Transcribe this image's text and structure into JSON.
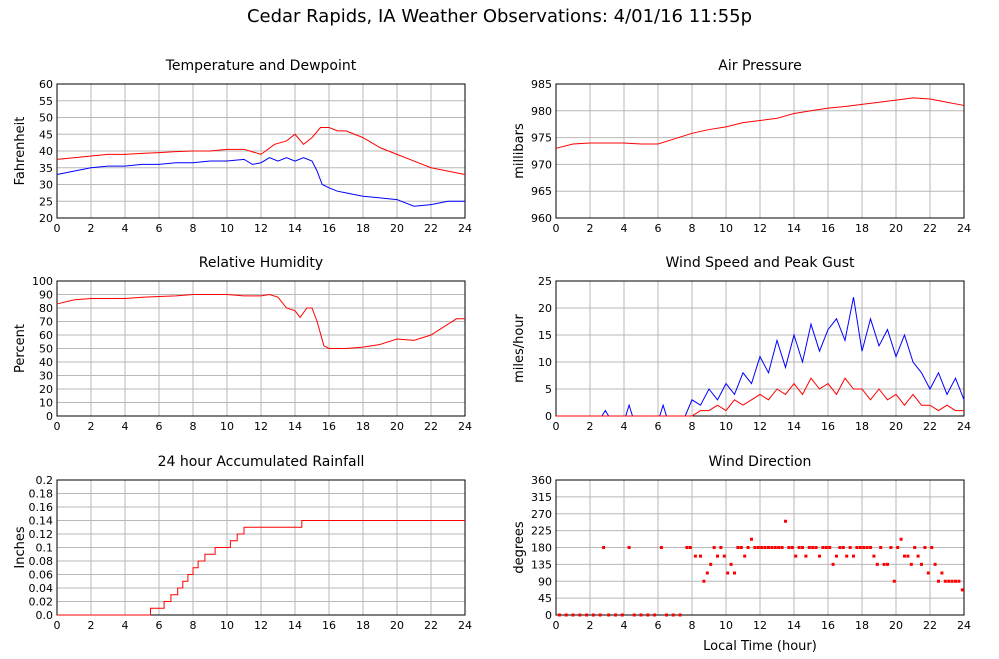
{
  "title": "Cedar Rapids, IA Weather Observations: 4/01/16 11:55p",
  "xlabel_shared": "Local Time (hour)",
  "colors": {
    "red": "#ff0000",
    "blue": "#0000ff"
  },
  "chart_data": [
    {
      "id": "temp",
      "type": "line",
      "title": "Temperature and Dewpoint",
      "ylabel": "Fahrenheit",
      "xlim": [
        0,
        24
      ],
      "ylim": [
        20,
        60
      ],
      "xticks": [
        0,
        2,
        4,
        6,
        8,
        10,
        12,
        14,
        16,
        18,
        20,
        22,
        24
      ],
      "yticks": [
        20,
        25,
        30,
        35,
        40,
        45,
        50,
        55,
        60
      ],
      "series": [
        {
          "color": "#ff0000",
          "x": [
            0,
            1,
            2,
            3,
            4,
            5,
            6,
            7,
            8,
            9,
            10,
            11,
            12,
            12.8,
            13.5,
            14,
            14.5,
            15,
            15.5,
            16,
            16.5,
            17,
            17.5,
            18,
            19,
            20,
            21,
            22,
            23,
            24
          ],
          "y": [
            37.5,
            38,
            38.5,
            39,
            39,
            39.3,
            39.5,
            39.8,
            40,
            40,
            40.5,
            40.5,
            39,
            42,
            43,
            45,
            42,
            44,
            47,
            47,
            46,
            46,
            45,
            44,
            41,
            39,
            37,
            35,
            34,
            33
          ]
        },
        {
          "color": "#0000ff",
          "x": [
            0,
            1,
            2,
            3,
            4,
            5,
            6,
            7,
            8,
            9,
            10,
            11,
            11.5,
            12,
            12.5,
            13,
            13.5,
            14,
            14.5,
            15,
            15.3,
            15.6,
            16,
            16.5,
            17,
            18,
            19,
            20,
            21,
            22,
            23,
            24
          ],
          "y": [
            33,
            34,
            35,
            35.5,
            35.5,
            36,
            36,
            36.5,
            36.5,
            37,
            37,
            37.5,
            36,
            36.5,
            38,
            37,
            38,
            37,
            38,
            37,
            34,
            30,
            29,
            28,
            27.5,
            26.5,
            26,
            25.5,
            23.5,
            24,
            25,
            25
          ]
        }
      ]
    },
    {
      "id": "pressure",
      "type": "line",
      "title": "Air Pressure",
      "ylabel": "millibars",
      "xlim": [
        0,
        24
      ],
      "ylim": [
        960,
        985
      ],
      "xticks": [
        0,
        2,
        4,
        6,
        8,
        10,
        12,
        14,
        16,
        18,
        20,
        22,
        24
      ],
      "yticks": [
        960,
        965,
        970,
        975,
        980,
        985
      ],
      "series": [
        {
          "color": "#ff0000",
          "x": [
            0,
            1,
            2,
            3,
            4,
            5,
            6,
            7,
            8,
            9,
            10,
            11,
            12,
            13,
            14,
            15,
            16,
            17,
            18,
            19,
            20,
            21,
            22,
            23,
            24
          ],
          "y": [
            973,
            973.8,
            974,
            974,
            974,
            973.8,
            973.8,
            974.8,
            975.8,
            976.5,
            977,
            977.8,
            978.2,
            978.6,
            979.5,
            980,
            980.5,
            980.8,
            981.2,
            981.6,
            982,
            982.4,
            982.2,
            981.6,
            981
          ]
        }
      ]
    },
    {
      "id": "humidity",
      "type": "line",
      "title": "Relative Humidity",
      "ylabel": "Percent",
      "xlim": [
        0,
        24
      ],
      "ylim": [
        0,
        100
      ],
      "xticks": [
        0,
        2,
        4,
        6,
        8,
        10,
        12,
        14,
        16,
        18,
        20,
        22,
        24
      ],
      "yticks": [
        0,
        10,
        20,
        30,
        40,
        50,
        60,
        70,
        80,
        90,
        100
      ],
      "series": [
        {
          "color": "#ff0000",
          "x": [
            0,
            1,
            2,
            3,
            4,
            5,
            6,
            7,
            8,
            9,
            10,
            11,
            12,
            12.5,
            13,
            13.5,
            14,
            14.3,
            14.7,
            15,
            15.3,
            15.7,
            16,
            17,
            18,
            19,
            20,
            21,
            22,
            23,
            23.5,
            24
          ],
          "y": [
            83,
            86,
            87,
            87,
            87,
            88,
            88.5,
            89,
            90,
            90,
            90,
            89,
            89,
            90,
            88,
            80,
            78,
            73,
            80,
            80,
            70,
            52,
            50,
            50,
            51,
            53,
            57,
            56,
            60,
            68,
            72,
            72
          ]
        }
      ]
    },
    {
      "id": "wind",
      "type": "line",
      "title": "Wind Speed and Peak Gust",
      "ylabel": "miles/hour",
      "xlim": [
        0,
        24
      ],
      "ylim": [
        0,
        25
      ],
      "xticks": [
        0,
        2,
        4,
        6,
        8,
        10,
        12,
        14,
        16,
        18,
        20,
        22,
        24
      ],
      "yticks": [
        0,
        5,
        10,
        15,
        20,
        25
      ],
      "series": [
        {
          "color": "#0000ff",
          "x": [
            0,
            2.7,
            2.9,
            3.1,
            4.1,
            4.3,
            4.5,
            6.1,
            6.3,
            6.5,
            7.6,
            8,
            8.5,
            9,
            9.5,
            10,
            10.5,
            11,
            11.5,
            12,
            12.5,
            13,
            13.5,
            14,
            14.5,
            15,
            15.5,
            16,
            16.5,
            17,
            17.5,
            18,
            18.5,
            19,
            19.5,
            20,
            20.5,
            21,
            21.5,
            22,
            22.5,
            23,
            23.5,
            24
          ],
          "y": [
            0,
            0,
            1,
            0,
            0,
            2,
            0,
            0,
            2,
            0,
            0,
            3,
            2,
            5,
            3,
            6,
            4,
            8,
            6,
            11,
            8,
            14,
            9,
            15,
            10,
            17,
            12,
            16,
            18,
            14,
            22,
            12,
            18,
            13,
            16,
            11,
            15,
            10,
            8,
            5,
            8,
            4,
            7,
            3
          ]
        },
        {
          "color": "#ff0000",
          "x": [
            0,
            8,
            8.5,
            9,
            9.5,
            10,
            10.5,
            11,
            11.5,
            12,
            12.5,
            13,
            13.5,
            14,
            14.5,
            15,
            15.5,
            16,
            16.5,
            17,
            17.5,
            18,
            18.5,
            19,
            19.5,
            20,
            20.5,
            21,
            21.5,
            22,
            22.5,
            23,
            23.5,
            24
          ],
          "y": [
            0,
            0,
            1,
            1,
            2,
            1,
            3,
            2,
            3,
            4,
            3,
            5,
            4,
            6,
            4,
            7,
            5,
            6,
            4,
            7,
            5,
            5,
            3,
            5,
            3,
            4,
            2,
            4,
            2,
            2,
            1,
            2,
            1,
            1
          ]
        }
      ]
    },
    {
      "id": "rain",
      "type": "line",
      "title": "24 hour Accumulated Rainfall",
      "ylabel": "Inches",
      "xlim": [
        0,
        24
      ],
      "ylim": [
        0,
        0.2
      ],
      "xticks": [
        0,
        2,
        4,
        6,
        8,
        10,
        12,
        14,
        16,
        18,
        20,
        22,
        24
      ],
      "yticks": [
        "0.0",
        "0.02",
        "0.04",
        "0.06",
        "0.08",
        "0.1",
        "0.12",
        "0.14",
        "0.16",
        "0.18",
        "0.2"
      ],
      "series": [
        {
          "color": "#ff0000",
          "step": true,
          "x": [
            0,
            5.5,
            6.3,
            6.7,
            7.1,
            7.4,
            7.7,
            8.0,
            8.3,
            8.7,
            9.3,
            10.2,
            10.6,
            11.0,
            14.4,
            24
          ],
          "y": [
            0,
            0.01,
            0.02,
            0.03,
            0.04,
            0.05,
            0.06,
            0.07,
            0.08,
            0.09,
            0.1,
            0.11,
            0.12,
            0.13,
            0.14,
            0.14
          ]
        }
      ]
    },
    {
      "id": "winddir",
      "type": "scatter",
      "title": "Wind Direction",
      "ylabel": "degrees",
      "xlim": [
        0,
        24
      ],
      "ylim": [
        0,
        360
      ],
      "xticks": [
        0,
        2,
        4,
        6,
        8,
        10,
        12,
        14,
        16,
        18,
        20,
        22,
        24
      ],
      "yticks": [
        0,
        45,
        90,
        135,
        180,
        225,
        270,
        315,
        360
      ],
      "series": [
        {
          "color": "#ff0000",
          "x": [
            0.2,
            0.6,
            1.0,
            1.4,
            1.8,
            2.2,
            2.6,
            2.8,
            3.1,
            3.5,
            3.9,
            4.3,
            4.6,
            5.0,
            5.4,
            5.8,
            6.2,
            6.5,
            6.9,
            7.3,
            7.7,
            7.9,
            8.2,
            8.5,
            8.7,
            8.9,
            9.1,
            9.3,
            9.5,
            9.7,
            9.9,
            10.1,
            10.3,
            10.5,
            10.7,
            10.9,
            11.1,
            11.3,
            11.5,
            11.7,
            11.9,
            12.1,
            12.3,
            12.5,
            12.7,
            12.9,
            13.1,
            13.3,
            13.5,
            13.7,
            13.9,
            14.1,
            14.3,
            14.5,
            14.7,
            14.9,
            15.1,
            15.3,
            15.5,
            15.7,
            15.9,
            16.1,
            16.3,
            16.5,
            16.7,
            16.9,
            17.1,
            17.3,
            17.5,
            17.7,
            17.9,
            18.1,
            18.3,
            18.5,
            18.7,
            18.9,
            19.1,
            19.3,
            19.5,
            19.7,
            19.9,
            20.1,
            20.3,
            20.5,
            20.7,
            20.9,
            21.1,
            21.3,
            21.5,
            21.7,
            21.9,
            22.1,
            22.3,
            22.5,
            22.7,
            22.9,
            23.1,
            23.3,
            23.5,
            23.7,
            23.9
          ],
          "y": [
            0,
            0,
            0,
            0,
            0,
            0,
            0,
            180,
            0,
            0,
            0,
            180,
            0,
            0,
            0,
            0,
            180,
            0,
            0,
            0,
            180,
            180,
            157,
            157,
            90,
            112,
            135,
            180,
            157,
            180,
            157,
            112,
            135,
            112,
            180,
            180,
            157,
            180,
            202,
            180,
            180,
            180,
            180,
            180,
            180,
            180,
            180,
            180,
            250,
            180,
            180,
            157,
            180,
            180,
            157,
            180,
            180,
            180,
            157,
            180,
            180,
            180,
            135,
            157,
            180,
            180,
            157,
            180,
            157,
            180,
            180,
            180,
            180,
            180,
            157,
            135,
            180,
            135,
            135,
            180,
            90,
            180,
            202,
            157,
            157,
            135,
            180,
            157,
            135,
            180,
            112,
            180,
            135,
            90,
            112,
            90,
            90,
            90,
            90,
            90,
            67
          ]
        }
      ]
    }
  ]
}
